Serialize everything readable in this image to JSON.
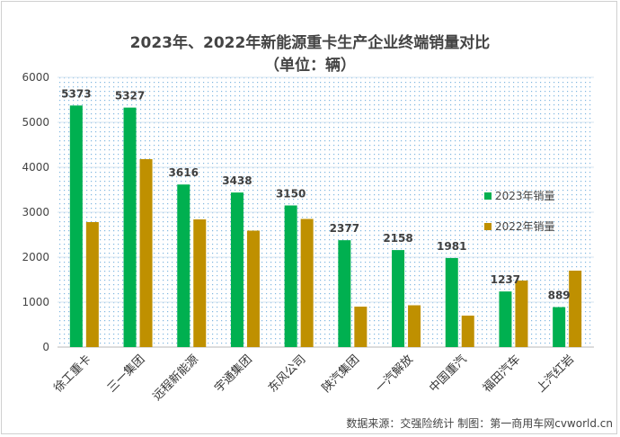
{
  "chart_data": {
    "type": "bar",
    "title": "2023年、2022年新能源重卡生产企业终端销量对比",
    "subtitle": "（单位：辆）",
    "categories": [
      "徐工重卡",
      "三一集团",
      "远程新能源",
      "宇通集团",
      "东风公司",
      "陕汽集团",
      "一汽解放",
      "中国重汽",
      "福田汽车",
      "上汽红岩"
    ],
    "series": [
      {
        "name": "2023年销量",
        "color": "#00b050",
        "values": [
          5373,
          5327,
          3616,
          3438,
          3150,
          2377,
          2158,
          1981,
          1237,
          889
        ],
        "labels": [
          "5373",
          "5327",
          "3616",
          "3438",
          "3150",
          "2377",
          "2158",
          "1981",
          "1237",
          "889"
        ]
      },
      {
        "name": "2022年销量",
        "color": "#bf9000",
        "values": [
          2780,
          4180,
          2840,
          2590,
          2850,
          900,
          930,
          700,
          1480,
          1700
        ]
      }
    ],
    "ylim": [
      0,
      6000
    ],
    "yticks": [
      "0",
      "1000",
      "2000",
      "3000",
      "4000",
      "5000",
      "6000"
    ],
    "legend_position": "right",
    "grid": true
  },
  "footer": {
    "source": "数据来源：交强险统计 制图：第一商用车网cvworld.cn"
  }
}
